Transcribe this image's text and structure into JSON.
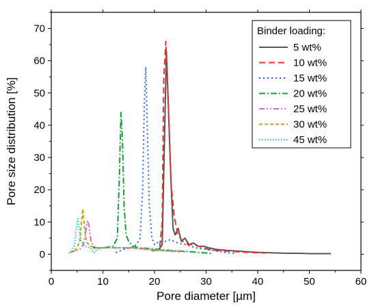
{
  "chart_data": {
    "type": "line",
    "title": "",
    "xlabel": "Pore diameter [µm]",
    "ylabel": "Pore size distribution [%]",
    "xlim": [
      0,
      60
    ],
    "ylim": [
      -5,
      75
    ],
    "xticks": [
      0,
      10,
      20,
      30,
      40,
      50,
      60
    ],
    "yticks": [
      0,
      10,
      20,
      30,
      40,
      50,
      60,
      70
    ],
    "grid": false,
    "legend": {
      "title": "Binder loading:",
      "placement": "top-right"
    },
    "series": [
      {
        "name": "5 wt%",
        "color": "#555555",
        "dash": "solid",
        "x": [
          20.5,
          21.0,
          21.5,
          22.0,
          22.3,
          22.7,
          23.2,
          23.6,
          24.0,
          24.6,
          25.2,
          25.9,
          26.7,
          27.5,
          28.5,
          29.5,
          30.5,
          32.0,
          34.0,
          36.0,
          38.0,
          40.0,
          42.0,
          44.0,
          46.0,
          48.0,
          50.0,
          52.0,
          54.2
        ],
        "y": [
          1.5,
          1.8,
          3.0,
          40.0,
          63.0,
          45.0,
          22.0,
          8.0,
          6.0,
          8.0,
          4.0,
          5.0,
          3.0,
          3.5,
          2.5,
          2.5,
          2.0,
          1.5,
          1.2,
          1.0,
          0.8,
          0.6,
          0.5,
          0.4,
          0.3,
          0.3,
          0.2,
          0.2,
          0.2
        ]
      },
      {
        "name": "10 wt%",
        "color": "#e8312a",
        "dash": "long-dash",
        "x": [
          19.5,
          20.5,
          21.0,
          21.5,
          21.8,
          22.2,
          22.6,
          23.2,
          23.8,
          24.5,
          25.5,
          26.5,
          27.5,
          28.5,
          29.5,
          30.5,
          32.0,
          34.0,
          36.0,
          38.0,
          40.0,
          41.5
        ],
        "y": [
          1.0,
          1.5,
          2.0,
          10.0,
          55.0,
          66.0,
          50.0,
          22.0,
          12.0,
          6.0,
          4.0,
          3.0,
          3.0,
          2.5,
          2.0,
          1.5,
          1.2,
          1.0,
          0.8,
          0.6,
          0.5,
          0.4
        ]
      },
      {
        "name": "15 wt%",
        "color": "#1f5fd6",
        "dash": "dot",
        "x": [
          12.5,
          14.0,
          15.5,
          16.5,
          17.2,
          17.7,
          18.0,
          18.3,
          18.6,
          19.0,
          19.5,
          20.0,
          21.0,
          22.0,
          23.0,
          24.5,
          26.0,
          28.0,
          30.0,
          32.0,
          34.0,
          35.5
        ],
        "y": [
          0.5,
          1.5,
          2.0,
          3.0,
          5.0,
          20.0,
          45.0,
          58.0,
          40.0,
          15.0,
          5.0,
          3.0,
          4.0,
          4.0,
          4.5,
          3.5,
          3.0,
          2.0,
          1.5,
          1.0,
          0.5,
          0.3
        ]
      },
      {
        "name": "20 wt%",
        "color": "#179c3a",
        "dash": "dash-dot",
        "x": [
          8.0,
          10.0,
          12.0,
          12.8,
          13.2,
          13.5,
          13.8,
          14.1,
          14.5,
          15.0,
          15.8,
          17.0,
          19.0,
          21.0,
          23.0,
          25.0,
          27.0,
          29.0,
          31.0
        ],
        "y": [
          2.0,
          2.0,
          2.5,
          5.0,
          25.0,
          44.0,
          35.0,
          15.0,
          6.0,
          4.0,
          2.5,
          2.0,
          1.8,
          1.5,
          1.2,
          1.0,
          0.8,
          0.5,
          0.3
        ]
      },
      {
        "name": "25 wt%",
        "color": "#c86ad0",
        "dash": "dash-dot-dot",
        "x": [
          3.5,
          4.5,
          5.5,
          6.2,
          6.6,
          7.0,
          7.3,
          7.7,
          8.2,
          9.0,
          10.5,
          12.0,
          14.0,
          16.0,
          18.0,
          20.0,
          22.0,
          24.0,
          26.0
        ],
        "y": [
          0.5,
          1.0,
          1.5,
          3.0,
          6.0,
          10.5,
          9.0,
          4.0,
          2.5,
          2.0,
          2.0,
          2.0,
          2.0,
          2.0,
          1.8,
          1.5,
          1.2,
          1.0,
          0.8
        ]
      },
      {
        "name": "30 wt%",
        "color": "#c8a017",
        "dash": "short-dash",
        "x": [
          3.5,
          4.5,
          5.0,
          5.5,
          5.8,
          6.1,
          6.4,
          6.8,
          7.5,
          9.0,
          11.0,
          13.0,
          15.0,
          17.0,
          19.0,
          21.0,
          23.0,
          25.0
        ],
        "y": [
          0.5,
          1.0,
          2.0,
          4.0,
          9.0,
          14.0,
          9.0,
          4.0,
          2.5,
          2.0,
          2.0,
          2.0,
          2.0,
          1.8,
          1.5,
          1.2,
          1.0,
          0.8
        ]
      },
      {
        "name": "45 wt%",
        "color": "#13c2cf",
        "dash": "fine-dot",
        "x": [
          3.5,
          4.0,
          4.5,
          4.8,
          5.1,
          5.4,
          5.8,
          6.5,
          7.5,
          8.3,
          8.8,
          10.0,
          12.0,
          14.0,
          16.0,
          18.0,
          20.0,
          22.0,
          24.0
        ],
        "y": [
          0.5,
          1.0,
          3.0,
          7.0,
          11.0,
          8.0,
          4.0,
          2.5,
          2.0,
          0.5,
          1.5,
          2.0,
          2.0,
          2.0,
          1.8,
          1.5,
          1.2,
          1.0,
          0.8
        ]
      }
    ]
  }
}
